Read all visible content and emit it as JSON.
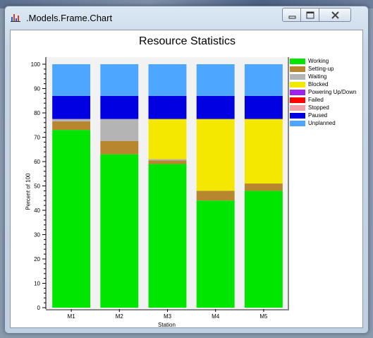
{
  "window": {
    "title": ".Models.Frame.Chart",
    "icon": "bar-chart-icon",
    "buttons": {
      "minimize": "minimize-icon",
      "maximize": "maximize-icon",
      "close": "close-icon"
    }
  },
  "chart_data": {
    "type": "bar",
    "stacked": true,
    "title": "Resource Statistics",
    "xlabel": "Station",
    "ylabel": "Percent of 100",
    "categories": [
      "M1",
      "M2",
      "M3",
      "M4",
      "M5"
    ],
    "ylim": [
      0,
      100
    ],
    "yticks": [
      0,
      10,
      20,
      30,
      40,
      50,
      60,
      70,
      80,
      90,
      100
    ],
    "grid": false,
    "legend_position": "right",
    "series": [
      {
        "name": "Working",
        "color": "#00e600",
        "values": [
          73,
          63,
          59,
          44,
          48
        ]
      },
      {
        "name": "Setting-up",
        "color": "#b8862e",
        "values": [
          3.5,
          5.5,
          1.5,
          4,
          3
        ]
      },
      {
        "name": "Waiting",
        "color": "#b4b4b4",
        "values": [
          1,
          9,
          0.5,
          0,
          0
        ]
      },
      {
        "name": "Blocked",
        "color": "#f5e800",
        "values": [
          0,
          0,
          16.5,
          29.5,
          26.5
        ]
      },
      {
        "name": "Powering Up/Down",
        "color": "#a020f0",
        "values": [
          0,
          0,
          0,
          0,
          0
        ]
      },
      {
        "name": "Failed",
        "color": "#ff0000",
        "values": [
          0,
          0,
          0,
          0,
          0
        ]
      },
      {
        "name": "Stopped",
        "color": "#f4a0a8",
        "values": [
          0,
          0,
          0,
          0,
          0
        ]
      },
      {
        "name": "Paused",
        "color": "#0000e0",
        "values": [
          9.5,
          9.5,
          9.5,
          9.5,
          9.5
        ]
      },
      {
        "name": "Unplanned",
        "color": "#4da6ff",
        "values": [
          13,
          13,
          13,
          13,
          13
        ]
      }
    ]
  }
}
